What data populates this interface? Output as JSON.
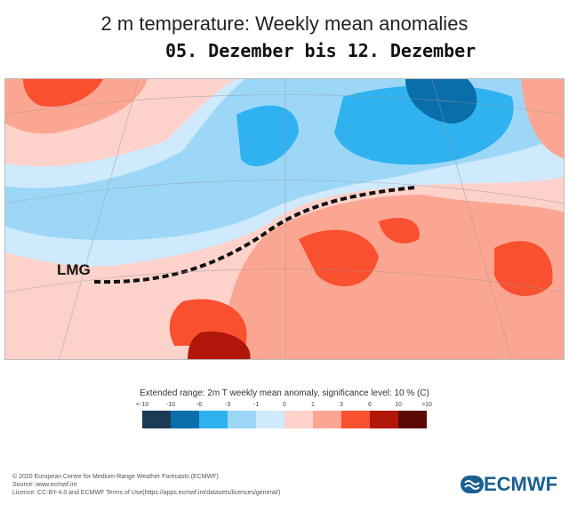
{
  "title": "2 m temperature: Weekly mean anomalies",
  "subtitle": "05. Dezember bis 12. Dezember",
  "map": {
    "annotation": "LMG"
  },
  "legend": {
    "title": "Extended range: 2m T weekly mean anomaly, significance level: 10 % (C)",
    "labels": [
      "<-10",
      "-10",
      "-6",
      "-3",
      "-1",
      "0",
      "1",
      "3",
      "6",
      "10",
      ">10"
    ],
    "colors": [
      "#1b3a53",
      "#0a6eaa",
      "#2fb2ef",
      "#9dd7f8",
      "#cfeafc",
      "#fdd2cb",
      "#fba692",
      "#f9502f",
      "#b1160b",
      "#5c0a07"
    ]
  },
  "footer": {
    "line1": "© 2020 European Centre for Medium-Range Weather Forecasts (ECMWF)",
    "line2": "Source: www.ecmwf.int",
    "line3": "Licence: CC-BY-4.0 and ECMWF Terms of Use(https://apps.ecmwf.int/datasets/licences/general/)"
  },
  "logo": {
    "text": "ECMWF"
  }
}
